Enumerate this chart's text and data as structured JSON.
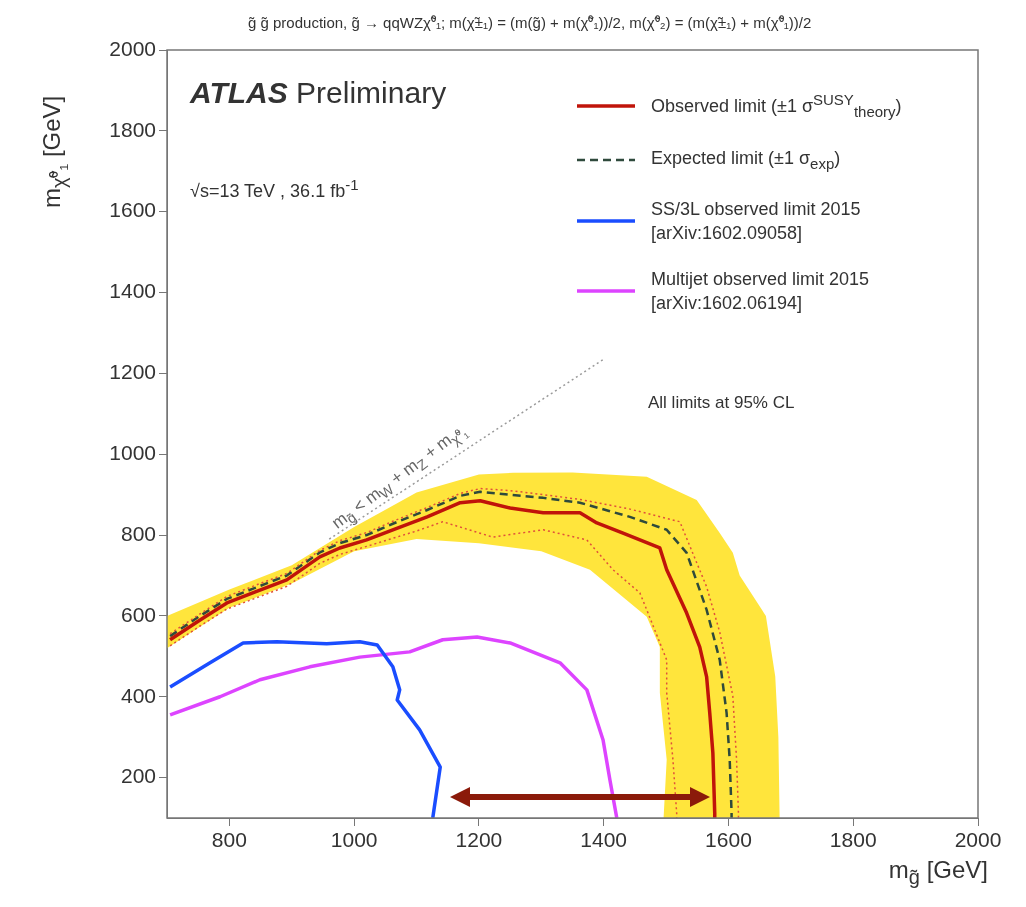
{
  "chart_data": {
    "type": "line",
    "title": "g̃ g̃ production, g̃ → qqWZχ̃⁰₁; m(χ̃±₁) = (m(g̃) + m(χ̃⁰₁))/2, m(χ̃⁰₂) = (m(χ̃±₁) + m(χ̃⁰₁))/2",
    "xlabel": "m$_{g̃}$ [GeV]",
    "ylabel": "m$_{χ̃⁰₁}$ [GeV]",
    "xlim": [
      700,
      2000
    ],
    "xticks": [
      800,
      1000,
      1200,
      1400,
      1600,
      1800,
      2000
    ],
    "ylim": [
      100,
      2000
    ],
    "yticks": [
      200,
      400,
      600,
      800,
      1000,
      1200,
      1400,
      1600,
      1800,
      2000
    ],
    "grid": false,
    "legend": "top right",
    "marker": "none",
    "annotations": [
      "ATLAS Preliminary",
      "√s=13 TeV , 36.1 fb$^{-1}$",
      "All limits at 95% CL",
      "m$_{g̃}$ < m$_{W}$ + m$_{Z}$ + m$_{χ̃⁰₁}$"
    ],
    "series": [
      {
        "name": "Observed limit (±1 σ$^{SUSY}$$_{theory}$)",
        "line_style": "solid",
        "color": "#c0140a",
        "x": [
          705,
          753,
          796,
          849,
          892,
          945,
          977,
          1020,
          1062,
          1117,
          1170,
          1202,
          1250,
          1303,
          1362,
          1389,
          1431,
          1490,
          1501,
          1533,
          1554,
          1565,
          1570,
          1575,
          1578,
          1578
        ],
        "values": [
          541,
          590,
          632,
          664,
          689,
          746,
          768,
          788,
          813,
          845,
          880,
          885,
          867,
          855,
          855,
          830,
          805,
          768,
          714,
          607,
          523,
          449,
          360,
          261,
          112,
          100
        ]
      },
      {
        "type": "line",
        "line_style": "dotted",
        "color": "#e0503a",
        "x": [
          705,
          753,
          796,
          849,
          892,
          945,
          977,
          1020,
          1062,
          1117,
          1170,
          1202,
          1250,
          1303,
          1362,
          1440,
          1522,
          1565,
          1586,
          1607,
          1613,
          1616,
          1616
        ],
        "values": [
          556,
          605,
          648,
          680,
          705,
          762,
          786,
          806,
          834,
          868,
          903,
          915,
          910,
          900,
          888,
          865,
          833,
          672,
          560,
          402,
          244,
          112,
          100
        ]
      },
      {
        "type": "line",
        "line_style": "dotted",
        "color": "#e0503a",
        "x": [
          705,
          753,
          796,
          849,
          892,
          945,
          977,
          1020,
          1062,
          1100,
          1142,
          1222,
          1303,
          1373,
          1415,
          1458,
          1469,
          1501,
          1501,
          1511,
          1517,
          1517
        ],
        "values": [
          526,
          575,
          617,
          648,
          673,
          730,
          752,
          772,
          792,
          810,
          833,
          795,
          813,
          788,
          714,
          657,
          615,
          491,
          410,
          244,
          112,
          100
        ]
      },
      {
        "name": "Expected limit (±1 σ$_{exp}$)",
        "line_style": "dashed",
        "color": "#2f4a3c",
        "x": [
          705,
          753,
          796,
          849,
          892,
          945,
          977,
          1020,
          1062,
          1117,
          1170,
          1202,
          1250,
          1303,
          1362,
          1442,
          1501,
          1533,
          1565,
          1586,
          1597,
          1602,
          1605,
          1605
        ],
        "values": [
          550,
          600,
          642,
          674,
          700,
          757,
          780,
          800,
          828,
          862,
          897,
          907,
          900,
          892,
          880,
          845,
          813,
          756,
          615,
          491,
          360,
          244,
          112,
          100
        ]
      },
      {
        "type": "area",
        "color": "#ffe53c",
        "x": [
          700,
          800,
          900,
          1000,
          1100,
          1200,
          1255,
          1350,
          1469,
          1549,
          1586,
          1607,
          1618,
          1660,
          1675,
          1680,
          1682,
          1496,
          1501,
          1490,
          1490,
          1469,
          1378,
          1300,
          1200,
          1100,
          1000,
          900,
          800,
          700
        ],
        "values": [
          600,
          665,
          725,
          820,
          905,
          950,
          954,
          955,
          944,
          887,
          805,
          756,
          700,
          600,
          450,
          300,
          100,
          100,
          244,
          410,
          523,
          598,
          714,
          760,
          780,
          790,
          760,
          680,
          620,
          520
        ]
      },
      {
        "name": "SS/3L observed limit 2015 [arXiv:1602.09058]",
        "line_style": "solid",
        "color": "#1a4dff",
        "x": [
          705,
          769,
          822,
          876,
          956,
          1009,
          1037,
          1062,
          1073,
          1069,
          1105,
          1138,
          1126
        ],
        "values": [
          424,
          484,
          533,
          536,
          531,
          536,
          528,
          474,
          417,
          392,
          318,
          226,
          100
        ]
      },
      {
        "name": "Multijet observed limit 2015 [arXiv:1602.06194]",
        "line_style": "solid",
        "color": "#dd44ff",
        "x": [
          705,
          785,
          849,
          929,
          1009,
          1089,
          1142,
          1197,
          1250,
          1330,
          1373,
          1399,
          1410,
          1421
        ],
        "values": [
          355,
          400,
          442,
          474,
          498,
          511,
          541,
          548,
          533,
          484,
          417,
          293,
          194,
          100
        ]
      },
      {
        "type": "line",
        "line_style": "dotted",
        "color": "#9a9a9a",
        "x": [
          960,
          1400
        ],
        "values": [
          790,
          1235
        ]
      }
    ]
  }
}
